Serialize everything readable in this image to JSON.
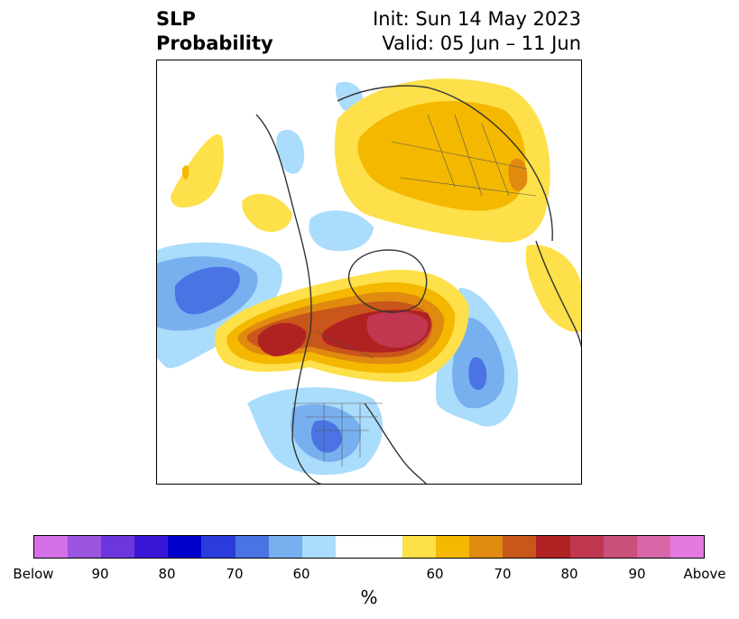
{
  "title": {
    "left_line1": "SLP",
    "left_line2": "Probability",
    "right_line1": "Init: Sun 14 May 2023",
    "right_line2": "Valid: 05 Jun – 11 Jun"
  },
  "colorbar": {
    "colors": [
      "#d570e6",
      "#9b55e0",
      "#6d35dc",
      "#3a17d8",
      "#0000cc",
      "#2a3ddc",
      "#4a74e4",
      "#78b0ef",
      "#aadcfb",
      "#ffffff",
      "#ffffff",
      "#fde04a",
      "#f4b800",
      "#e08a10",
      "#c9561a",
      "#b02222",
      "#c0374f",
      "#cb4f7b",
      "#d866a8",
      "#e47ae0"
    ],
    "labels": [
      "Below",
      "90",
      "80",
      "70",
      "60",
      "60",
      "70",
      "80",
      "90",
      "Above"
    ],
    "unit": "%"
  },
  "legend_colors": {
    "below_normal_light": "#aadcfb",
    "below_normal_mid": "#78b0ef",
    "below_normal_strong": "#4a74e4",
    "above_normal_light": "#fde04a",
    "above_normal_mid": "#f4b800",
    "above_normal_strong": "#e08a10",
    "above_normal_stronger": "#c9561a",
    "above_normal_max": "#b02222",
    "above_normal_extreme": "#c0374f"
  }
}
